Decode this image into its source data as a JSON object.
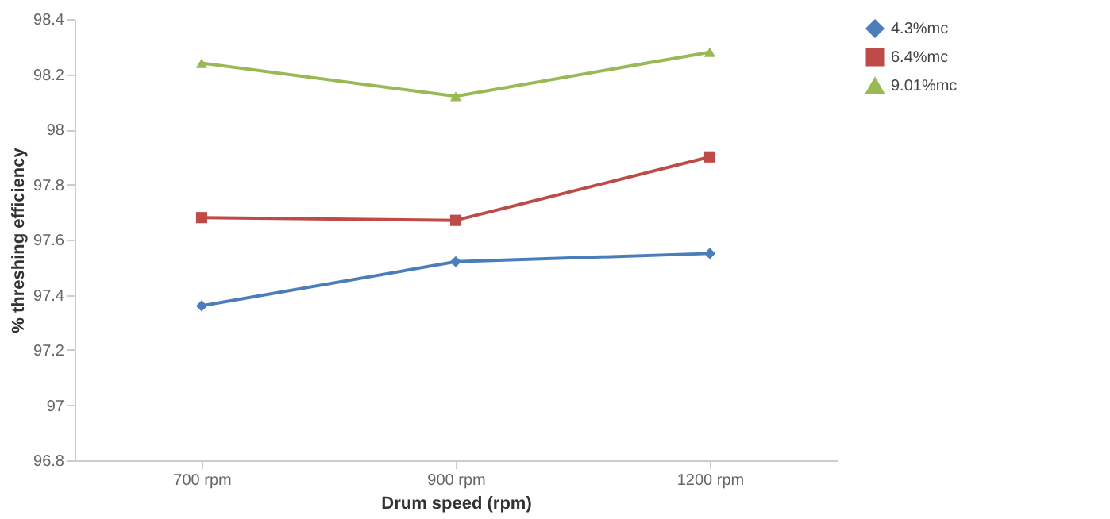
{
  "chart_data": {
    "type": "line",
    "xlabel": "Drum speed (rpm)",
    "ylabel": "% threshing efficiency",
    "categories": [
      "700 rpm",
      "900 rpm",
      "1200 rpm"
    ],
    "series": [
      {
        "name": "4.3%mc",
        "color": "#4a7ebb",
        "marker": "diamond",
        "values": [
          97.36,
          97.52,
          97.55
        ]
      },
      {
        "name": "6.4%mc",
        "color": "#be4b48",
        "marker": "square",
        "values": [
          97.68,
          97.67,
          97.9
        ]
      },
      {
        "name": "9.01%mc",
        "color": "#98b954",
        "marker": "triangle",
        "values": [
          98.24,
          98.12,
          98.28
        ]
      }
    ],
    "ylim": [
      96.8,
      98.4
    ],
    "yticks": [
      96.8,
      97,
      97.2,
      97.4,
      97.6,
      97.8,
      98,
      98.2,
      98.4
    ],
    "grid": false,
    "legend": "right",
    "line_style": "solid"
  }
}
